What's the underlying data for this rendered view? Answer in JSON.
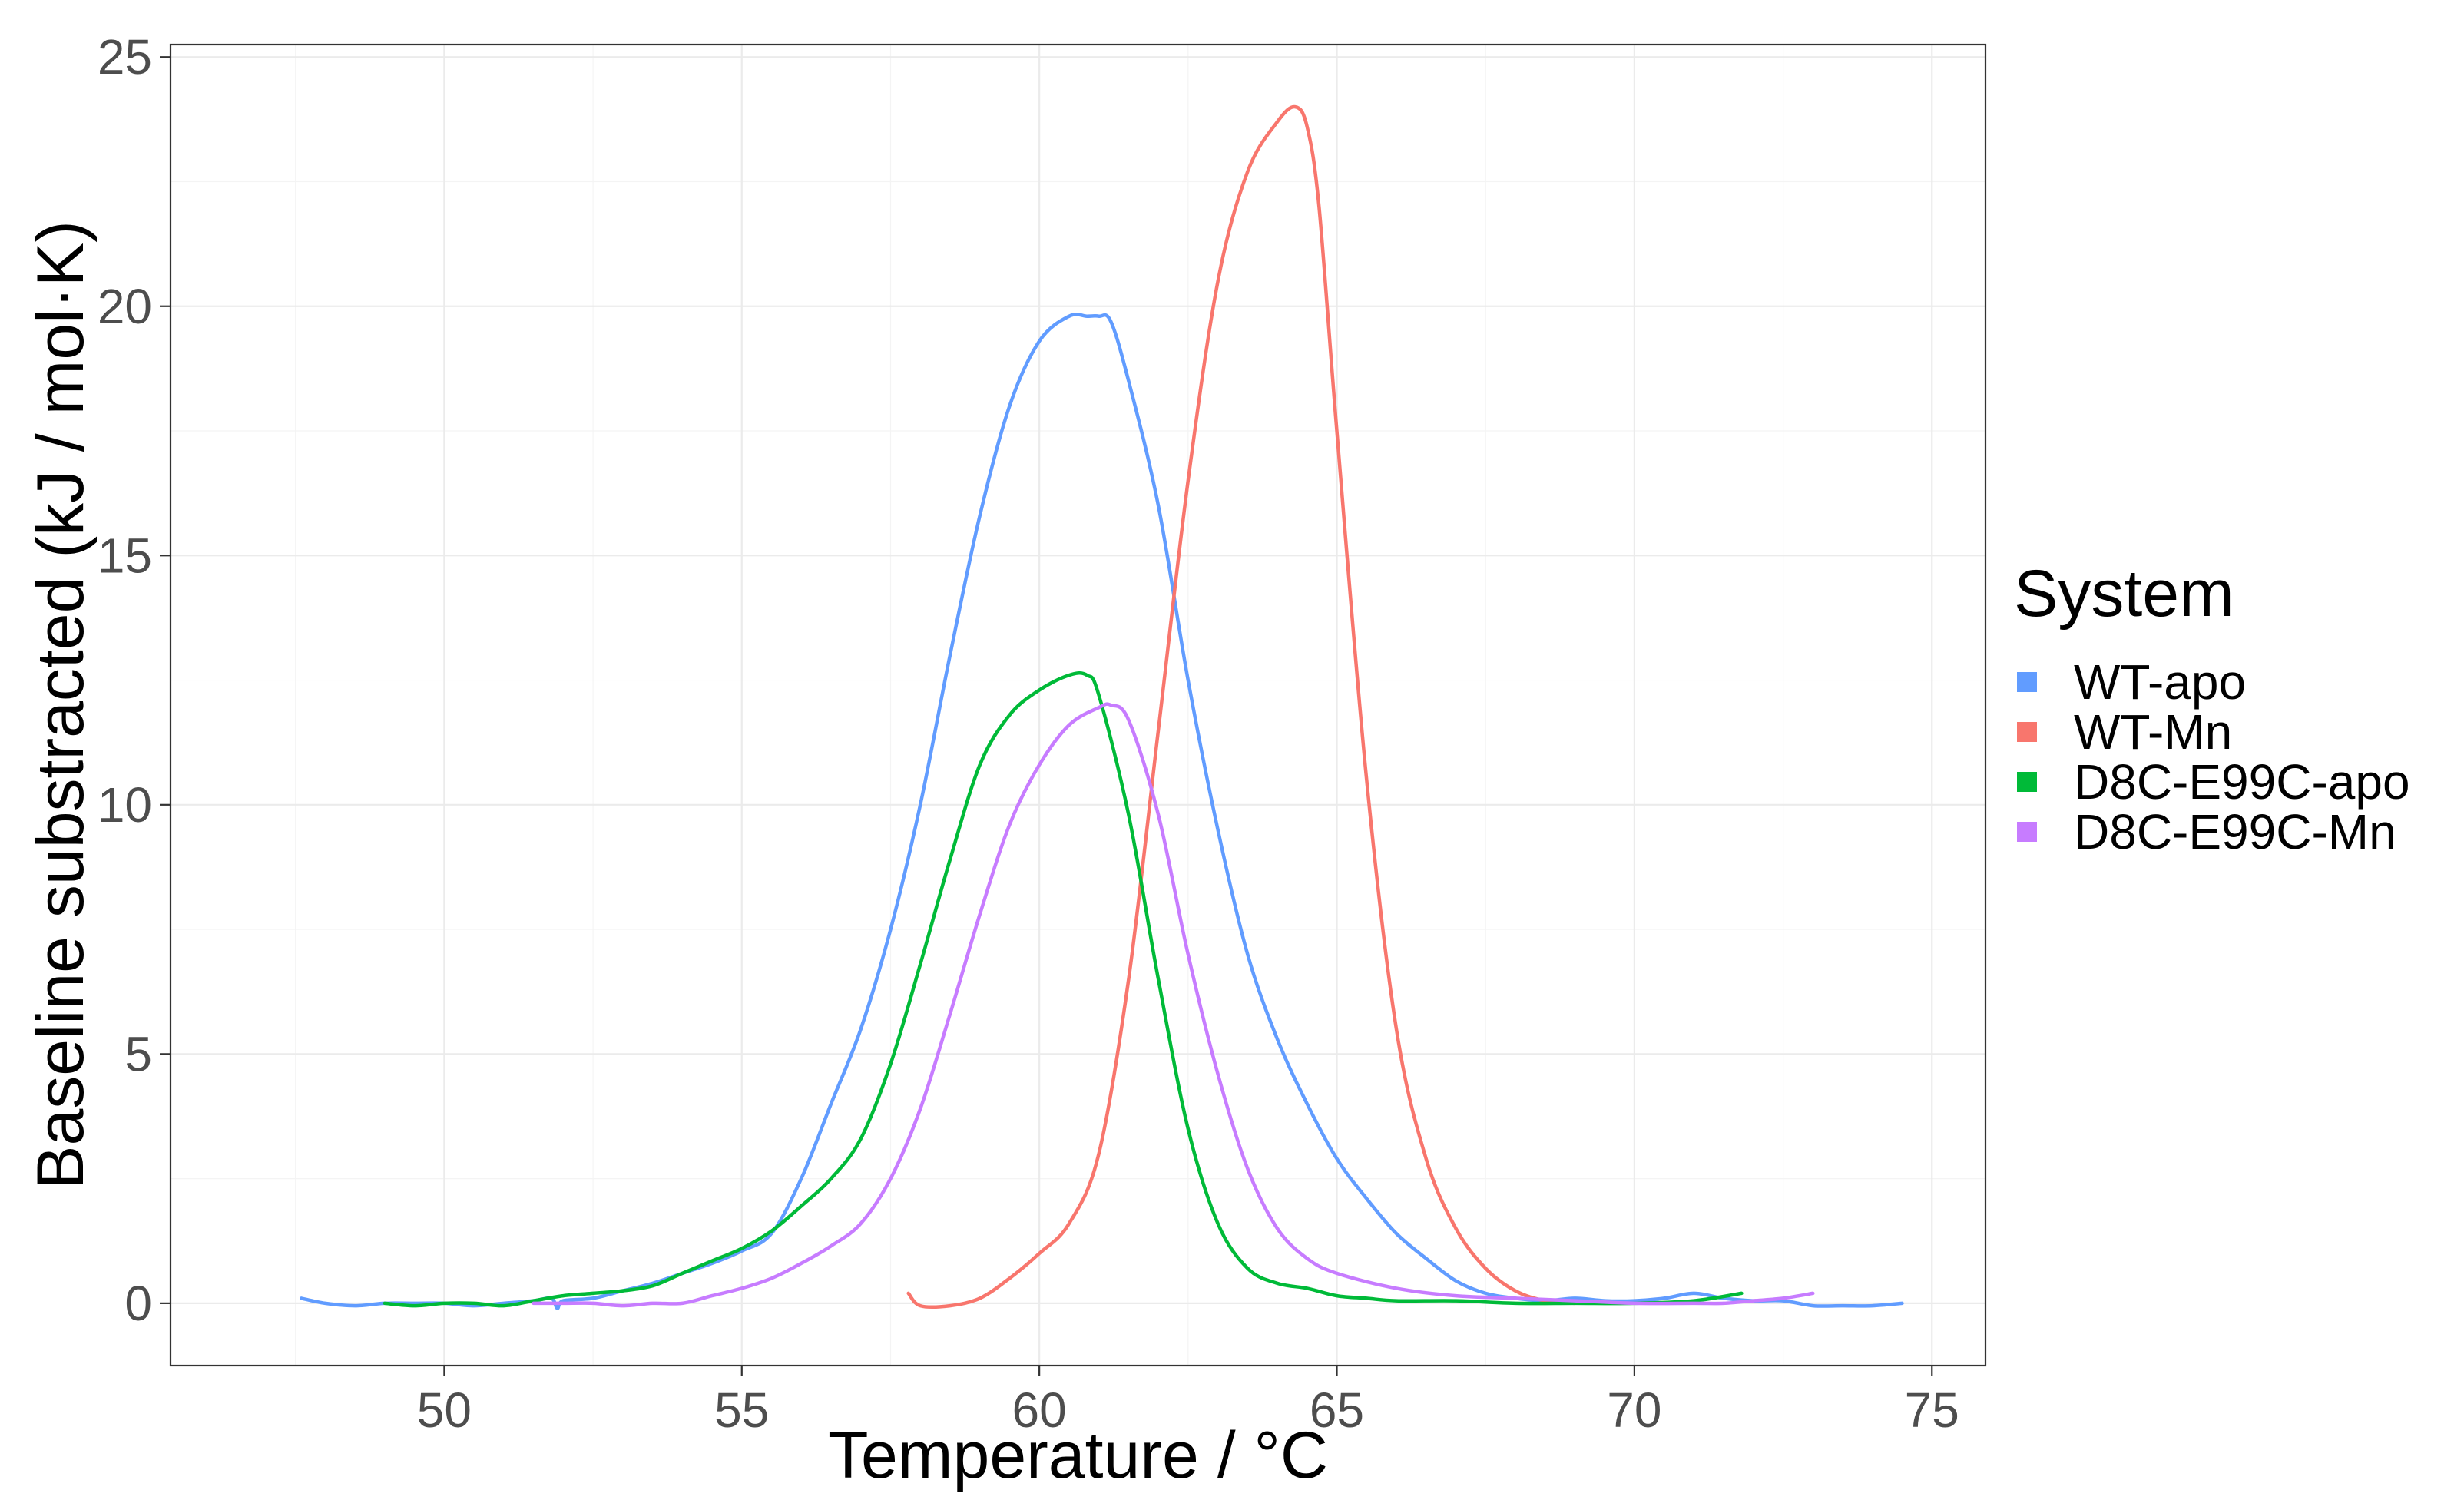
{
  "chart_data": {
    "type": "line",
    "xlabel": "Temperature / °C",
    "ylabel": "Baseline substracted (kJ / mol·K)",
    "xlim": [
      45.4,
      75.9
    ],
    "ylim": [
      -1.25,
      25.25
    ],
    "x_ticks": [
      50,
      55,
      60,
      65,
      70,
      75
    ],
    "y_ticks": [
      0,
      5,
      10,
      15,
      20,
      25
    ],
    "x_tick_labels": [
      "50",
      "55",
      "60",
      "65",
      "70",
      "75"
    ],
    "y_tick_labels": [
      "0",
      "5",
      "10",
      "15",
      "20",
      "25"
    ],
    "grid": true,
    "legend": {
      "title": "System",
      "position": "right"
    },
    "series": [
      {
        "name": "WT-apo",
        "color": "#619CFF",
        "x": [
          47.6,
          48.0,
          48.5,
          49.0,
          49.5,
          50.0,
          50.5,
          51.0,
          51.5,
          51.8,
          51.9,
          52.0,
          52.5,
          53.0,
          53.5,
          54.0,
          54.5,
          55.0,
          55.5,
          56.0,
          56.5,
          57.0,
          57.5,
          58.0,
          58.5,
          59.0,
          59.5,
          60.0,
          60.5,
          60.8,
          61.0,
          61.2,
          61.5,
          62.0,
          62.5,
          63.0,
          63.5,
          64.0,
          64.5,
          65.0,
          65.5,
          66.0,
          66.5,
          67.0,
          67.5,
          68.0,
          68.5,
          69.0,
          69.5,
          70.0,
          70.5,
          71.0,
          71.5,
          72.0,
          72.5,
          73.0,
          73.5,
          74.0,
          74.5
        ],
        "y": [
          0.1,
          0.0,
          -0.05,
          0.0,
          0.0,
          0.0,
          -0.05,
          0.0,
          0.05,
          0.1,
          -0.1,
          0.05,
          0.1,
          0.25,
          0.4,
          0.6,
          0.8,
          1.05,
          1.4,
          2.5,
          4.0,
          5.5,
          7.5,
          10.0,
          13.0,
          15.8,
          18.0,
          19.3,
          19.8,
          19.8,
          19.8,
          19.7,
          18.5,
          16.0,
          12.5,
          9.5,
          7.0,
          5.3,
          4.0,
          2.9,
          2.1,
          1.4,
          0.9,
          0.45,
          0.2,
          0.1,
          0.05,
          0.1,
          0.05,
          0.05,
          0.1,
          0.2,
          0.1,
          0.05,
          0.05,
          -0.05,
          -0.05,
          -0.05,
          0.0
        ]
      },
      {
        "name": "WT-Mn",
        "color": "#F8766D",
        "x": [
          57.8,
          58.0,
          58.5,
          59.0,
          59.5,
          60.0,
          60.5,
          61.0,
          61.5,
          62.0,
          62.5,
          63.0,
          63.5,
          64.0,
          64.3,
          64.5,
          64.7,
          65.0,
          65.5,
          66.0,
          66.5,
          67.0,
          67.5,
          68.0,
          68.5,
          69.0
        ],
        "y": [
          0.2,
          -0.05,
          -0.05,
          0.1,
          0.5,
          1.0,
          1.6,
          3.0,
          6.5,
          11.5,
          16.5,
          20.5,
          22.7,
          23.7,
          24.0,
          23.6,
          22.0,
          17.5,
          10.5,
          5.5,
          2.9,
          1.5,
          0.7,
          0.25,
          0.05,
          0.0
        ]
      },
      {
        "name": "D8C-E99C-apo",
        "color": "#00BA38",
        "x": [
          49.0,
          49.5,
          50.0,
          50.5,
          51.0,
          51.5,
          52.0,
          52.5,
          53.0,
          53.5,
          54.0,
          54.5,
          55.0,
          55.5,
          56.0,
          56.5,
          57.0,
          57.5,
          58.0,
          58.5,
          59.0,
          59.5,
          60.0,
          60.5,
          60.8,
          61.0,
          61.5,
          62.0,
          62.5,
          63.0,
          63.5,
          64.0,
          64.5,
          65.0,
          65.5,
          66.0,
          67.0,
          68.0,
          69.0,
          70.0,
          71.0,
          71.8
        ],
        "y": [
          0.0,
          -0.05,
          0.0,
          0.0,
          -0.05,
          0.05,
          0.15,
          0.2,
          0.25,
          0.35,
          0.6,
          0.85,
          1.1,
          1.45,
          1.95,
          2.5,
          3.3,
          4.8,
          6.8,
          8.9,
          10.8,
          11.8,
          12.3,
          12.6,
          12.6,
          12.2,
          9.8,
          6.5,
          3.5,
          1.6,
          0.7,
          0.4,
          0.3,
          0.15,
          0.1,
          0.05,
          0.05,
          0.0,
          0.0,
          0.0,
          0.05,
          0.2
        ]
      },
      {
        "name": "D8C-E99C-Mn",
        "color": "#C77CFF",
        "x": [
          51.5,
          52.0,
          52.5,
          53.0,
          53.5,
          54.0,
          54.5,
          55.0,
          55.5,
          56.0,
          56.5,
          57.0,
          57.5,
          58.0,
          58.5,
          59.0,
          59.5,
          60.0,
          60.5,
          61.0,
          61.2,
          61.5,
          62.0,
          62.5,
          63.0,
          63.5,
          64.0,
          64.5,
          65.0,
          66.0,
          67.0,
          68.0,
          69.0,
          70.0,
          71.0,
          71.5,
          72.0,
          72.5,
          73.0
        ],
        "y": [
          0.0,
          0.0,
          0.0,
          -0.05,
          0.0,
          0.0,
          0.15,
          0.3,
          0.5,
          0.8,
          1.15,
          1.6,
          2.5,
          3.9,
          5.8,
          7.8,
          9.6,
          10.8,
          11.6,
          11.95,
          12.0,
          11.7,
          9.8,
          7.0,
          4.6,
          2.7,
          1.5,
          0.9,
          0.6,
          0.3,
          0.15,
          0.1,
          0.05,
          0.0,
          0.0,
          0.0,
          0.05,
          0.1,
          0.2
        ]
      }
    ]
  }
}
